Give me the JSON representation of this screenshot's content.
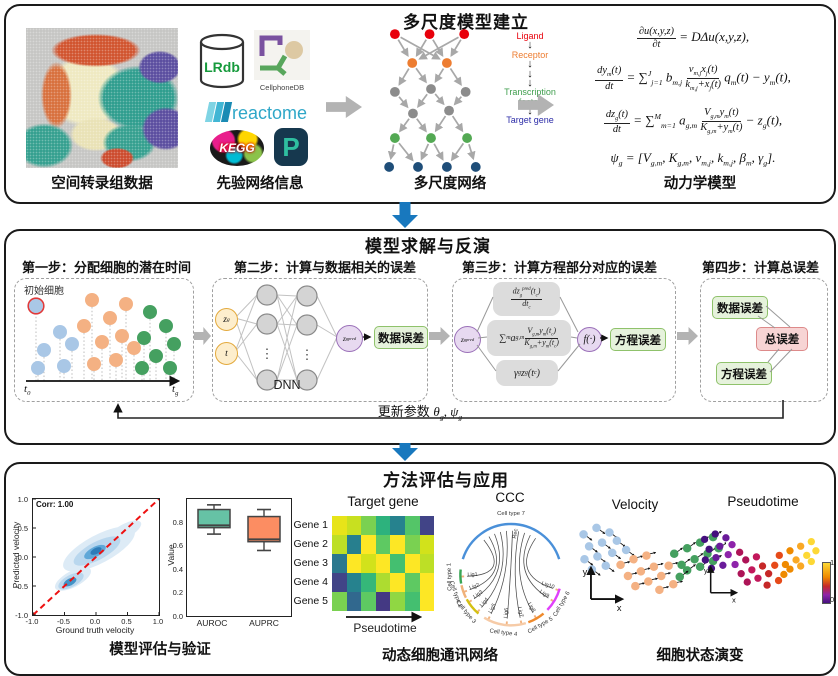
{
  "colors": {
    "title_red": "#e8000d",
    "arrow_blue": "#1878be",
    "arrow_gray": "#b3b3b3",
    "node_red": "#e8000b",
    "node_orange": "#ed7d31",
    "node_gray": "#8c8c8c",
    "node_green": "#53a953",
    "node_navy": "#1f4e79",
    "cell_blue": "#a9c7e6",
    "cell_orange": "#f4b183",
    "cell_green": "#45a060",
    "input_fill": "#fdeecd",
    "input_border": "#e3a93c",
    "pred_fill": "#e7d9f0",
    "pred_border": "#9a6fb8",
    "error_green_fill": "#e6f2dc",
    "error_green_border": "#8fc26b",
    "total_fill": "#f7d4d4",
    "total_border": "#dd8a8a",
    "reactome_teal": "#2fa7c8",
    "lrdb_green": "#169a3c",
    "box_teal": "#66c2a5",
    "box_orange": "#fc8d62",
    "pseudotime_palette": [
      "#45107e",
      "#6a1b9a",
      "#8e24aa",
      "#ad1457",
      "#c2185b",
      "#c62828",
      "#e64a19",
      "#ef8a00",
      "#f9a825",
      "#fdd835"
    ],
    "ccc_arc_colors": [
      "#3aa655",
      "#f0b27a",
      "#d4c012",
      "#f6cba7",
      "#ef8a2c",
      "#e040fb",
      "#4a90d9"
    ]
  },
  "panel1": {
    "title": "多尺度模型建立",
    "spatial_label": "空间转录组数据",
    "prior_label": "先验网络信息",
    "lrdb": "LRdb",
    "cellphonedb": "CellphoneDB",
    "reactome": "reactome",
    "kegg": "KEGG",
    "pc_letter": "P",
    "network_label": "多尺度网络",
    "legend": {
      "ligand": "Ligand",
      "receptor": "Receptor",
      "tf": "Transcription<br>factor",
      "target": "Target gene"
    },
    "model_label": "动力学模型",
    "eq1": "<span class='frac'><span>∂u(x,y,z)</span><span>∂t</span></span>&nbsp;= DΔu(x,y,z),",
    "eq2": "<span class='frac'><span>dy<sub>m</sub>(t)</span><span>dt</span></span>&nbsp;= ∑<sup>J</sup><sub>j=1</sub> b<sub>m,j</sub> <span class='frac'><span>v<sub>m,j</sub>x<sub>j</sub>(t)</span><span>k<sub>m,j</sub>+x<sub>j</sub>(t)</span></span> q<sub>m</sub>(t) − y<sub>m</sub>(t),",
    "eq3": "<span class='frac'><span>dz<sub>g</sub>(t)</span><span>dt</span></span>&nbsp;= ∑<sup>M</sup><sub>m=1</sub> a<sub>g,m</sub> <span class='frac'><span>V<sub>g,m</sub>y<sub>m</sub>(t)</span><span>K<sub>g,m</sub>+y<sub>m</sub>(t)</span></span> − z<sub>g</sub>(t),",
    "eq4": "ψ<sub>g</sub> = [V<sub>g,m</sub>, K<sub>g,m</sub>, v<sub>m,j</sub>, k<sub>m,j</sub>, β<sub>m</sub>, γ<sub>g</sub>]."
  },
  "panel2": {
    "title": "模型求解与反演",
    "step1_title": "第一步：分配细胞的潜在时间",
    "step2_title": "第二步：计算与数据相关的误差",
    "step3_title": "第三步：计算方程部分对应的误差",
    "step4_title": "第四步：计算总误差",
    "initial_cell": "初始细胞",
    "t0": "t<sub>0</sub>",
    "tg": "t<sub>g</sub>",
    "zg": "z<sub>g</sub>",
    "t_in": "t",
    "dnn": "DNN",
    "zg_pred": "z<sub>g</sub><sup>pred</sup>",
    "data_error": "数据误差",
    "box1": "<span class='frac'><span>dz<sub>g</sub><sup>pred</sup>(t<sub>c</sub>)</span><span>dt<sub>c</sub></span></span>",
    "box2": "∑<sub>m</sub>a<sub>g,m</sub><span class='frac'><span>V<sub>g,m</sub>y<sub>m</sub>(t<sub>c</sub>)</span><span>K<sub>g,m</sub>+y<sub>m</sub>(t<sub>c</sub>)</span></span>",
    "box3": "γ<sub>g</sub>z<sub>g</sub>(t<sub>c</sub>)",
    "f_label": "f(·)",
    "eq_error": "方程误差",
    "s4_data_error": "数据误差",
    "s4_eq_error": "方程误差",
    "total_error": "总误差",
    "update_label": "更新参数 <span class='math'>θ<sub>g</sub>, ψ<sub>g</sub></span>"
  },
  "panel3": {
    "title": "方法评估与应用",
    "eval_label": "模型评估与验证",
    "ccc_label": "动态细胞通讯网络",
    "state_label": "细胞状态演变",
    "corr": "Corr: 1.00",
    "scatter_xlabel": "Ground truth velocity",
    "scatter_ylabel": "Predicted velocity",
    "box_ylabel": "Value",
    "heat_title": "Target gene",
    "heat_xlabel": "Pseudotime",
    "ccc_title": "CCC",
    "rec": "Rec",
    "cell_types": [
      "Cell type 1",
      "Cell type 2",
      "Cell type 3",
      "Cell type 4",
      "Cell type 5",
      "Cell type 6",
      "Cell type 7"
    ],
    "ligands": [
      "Lig1",
      "Lig2",
      "Lig3",
      "Lig4",
      "Lig5",
      "Lig6",
      "Lig7",
      "Lig8",
      "Lig9",
      "Lig10"
    ],
    "velocity_title": "Velocity",
    "pseudo_title": "Pseudotime",
    "axis_x": "x",
    "axis_y": "y",
    "cbar_top": "1",
    "cbar_bottom": "0"
  },
  "chart_data": [
    {
      "type": "scatter",
      "title": "Corr: 1.00",
      "xlabel": "Ground truth velocity",
      "ylabel": "Predicted velocity",
      "xlim": [
        -1.0,
        1.0
      ],
      "ylim": [
        -1.0,
        1.0
      ],
      "xticks": [
        "-1.0",
        "-0.5",
        "0.0",
        "0.5",
        "1.0"
      ],
      "yticks": [
        "1.0",
        "0.5",
        "0.0",
        "-0.5",
        "-1.0"
      ],
      "note": "density of points concentrated along y=x diagonal (red dashed identity line); dense blob near (0.2,0.1), smaller blob near (-0.35,-0.3)"
    },
    {
      "type": "box",
      "ylabel": "Value",
      "categories": [
        "AUROC",
        "AUPRC"
      ],
      "yticks": [
        "0.8",
        "0.6",
        "0.4",
        "0.2",
        "0.0"
      ],
      "ylim": [
        0.0,
        1.0
      ],
      "boxes": [
        {
          "name": "AUROC",
          "whisker_low": 0.7,
          "q1": 0.755,
          "median": 0.775,
          "q3": 0.91,
          "whisker_high": 0.95,
          "color": "#66c2a5"
        },
        {
          "name": "AUPRC",
          "whisker_low": 0.56,
          "q1": 0.635,
          "median": 0.655,
          "q3": 0.85,
          "whisker_high": 0.91,
          "color": "#fc8d62"
        }
      ]
    },
    {
      "type": "heatmap",
      "title": "Target gene",
      "rows": [
        "Gene 1",
        "Gene 2",
        "Gene 3",
        "Gene 4",
        "Gene 5"
      ],
      "xlabel": "Pseudotime",
      "colors": [
        [
          "#e7e419",
          "#c8e020",
          "#7ad151",
          "#2db27d",
          "#26828e",
          "#54c568",
          "#414487"
        ],
        [
          "#bddf26",
          "#277f8e",
          "#fde725",
          "#5ec962",
          "#fde725",
          "#7ad151",
          "#d2e21b"
        ],
        [
          "#2a788e",
          "#fde725",
          "#d2e21b",
          "#fde725",
          "#44bf70",
          "#fde725",
          "#bddf26"
        ],
        [
          "#414487",
          "#26828e",
          "#35b779",
          "#addc30",
          "#fde725",
          "#5ec962",
          "#fde725"
        ],
        [
          "#7ad151",
          "#31688e",
          "#5ec962",
          "#443983",
          "#90d743",
          "#44bf70",
          "#fde725"
        ]
      ]
    }
  ]
}
